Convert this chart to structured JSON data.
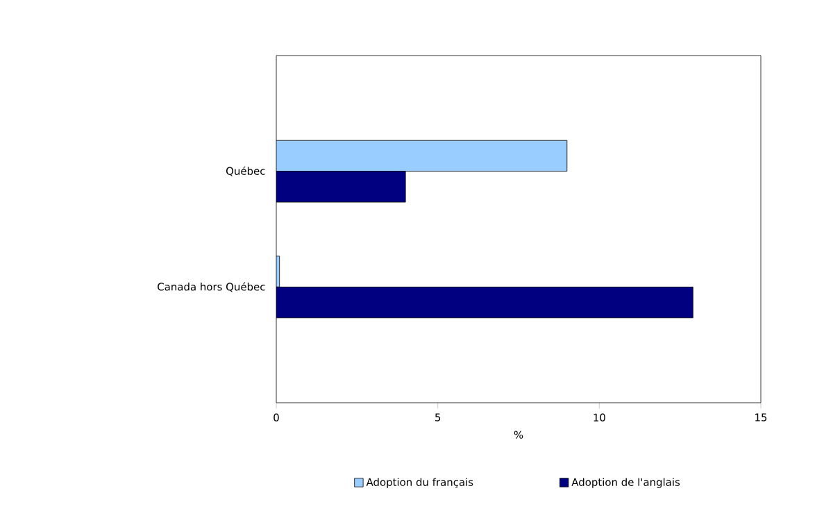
{
  "chart_data": {
    "type": "bar",
    "orientation": "horizontal",
    "categories": [
      "Québec",
      "Canada hors Québec"
    ],
    "series": [
      {
        "name": "Adoption du français",
        "color": "#99ccff",
        "values": [
          9.0,
          0.1
        ]
      },
      {
        "name": "Adoption de l'anglais",
        "color": "#000080",
        "values": [
          4.0,
          12.9
        ]
      }
    ],
    "xlabel": "%",
    "xlim": [
      0,
      15
    ],
    "xticks": [
      0,
      5,
      10,
      15
    ],
    "grid": false,
    "legend": "bottom"
  }
}
